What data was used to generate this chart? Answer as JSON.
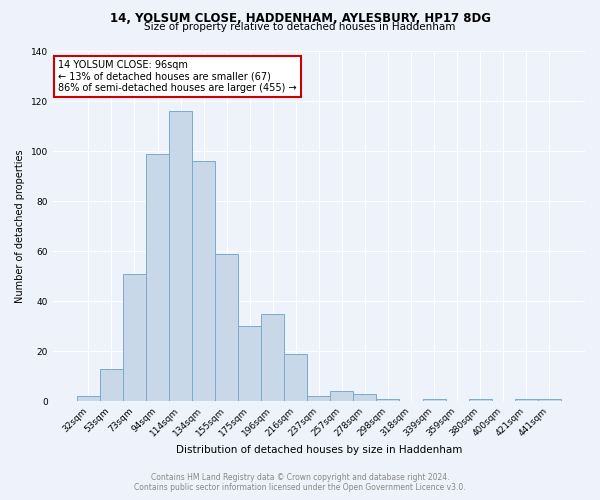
{
  "title1": "14, YOLSUM CLOSE, HADDENHAM, AYLESBURY, HP17 8DG",
  "title2": "Size of property relative to detached houses in Haddenham",
  "xlabel": "Distribution of detached houses by size in Haddenham",
  "ylabel": "Number of detached properties",
  "categories": [
    "32sqm",
    "53sqm",
    "73sqm",
    "94sqm",
    "114sqm",
    "134sqm",
    "155sqm",
    "175sqm",
    "196sqm",
    "216sqm",
    "237sqm",
    "257sqm",
    "278sqm",
    "298sqm",
    "318sqm",
    "339sqm",
    "359sqm",
    "380sqm",
    "400sqm",
    "421sqm",
    "441sqm"
  ],
  "values": [
    2,
    13,
    51,
    99,
    116,
    96,
    59,
    30,
    35,
    19,
    2,
    4,
    3,
    1,
    0,
    1,
    0,
    1,
    0,
    1,
    1
  ],
  "bar_color": "#c8d8e8",
  "bar_edge_color": "#7aaacc",
  "ylim": [
    0,
    140
  ],
  "yticks": [
    0,
    20,
    40,
    60,
    80,
    100,
    120,
    140
  ],
  "annotation_title": "14 YOLSUM CLOSE: 96sqm",
  "annotation_line1": "← 13% of detached houses are smaller (67)",
  "annotation_line2": "86% of semi-detached houses are larger (455) →",
  "annotation_box_color": "#ffffff",
  "annotation_box_edge": "#cc0000",
  "footer1": "Contains HM Land Registry data © Crown copyright and database right 2024.",
  "footer2": "Contains public sector information licensed under the Open Government Licence v3.0.",
  "background_color": "#eef2fa",
  "grid_color": "#ffffff",
  "title1_fontsize": 8.5,
  "title2_fontsize": 7.5,
  "xlabel_fontsize": 7.5,
  "ylabel_fontsize": 7.0,
  "tick_fontsize": 6.5,
  "annotation_fontsize": 7.0,
  "footer_fontsize": 5.5
}
